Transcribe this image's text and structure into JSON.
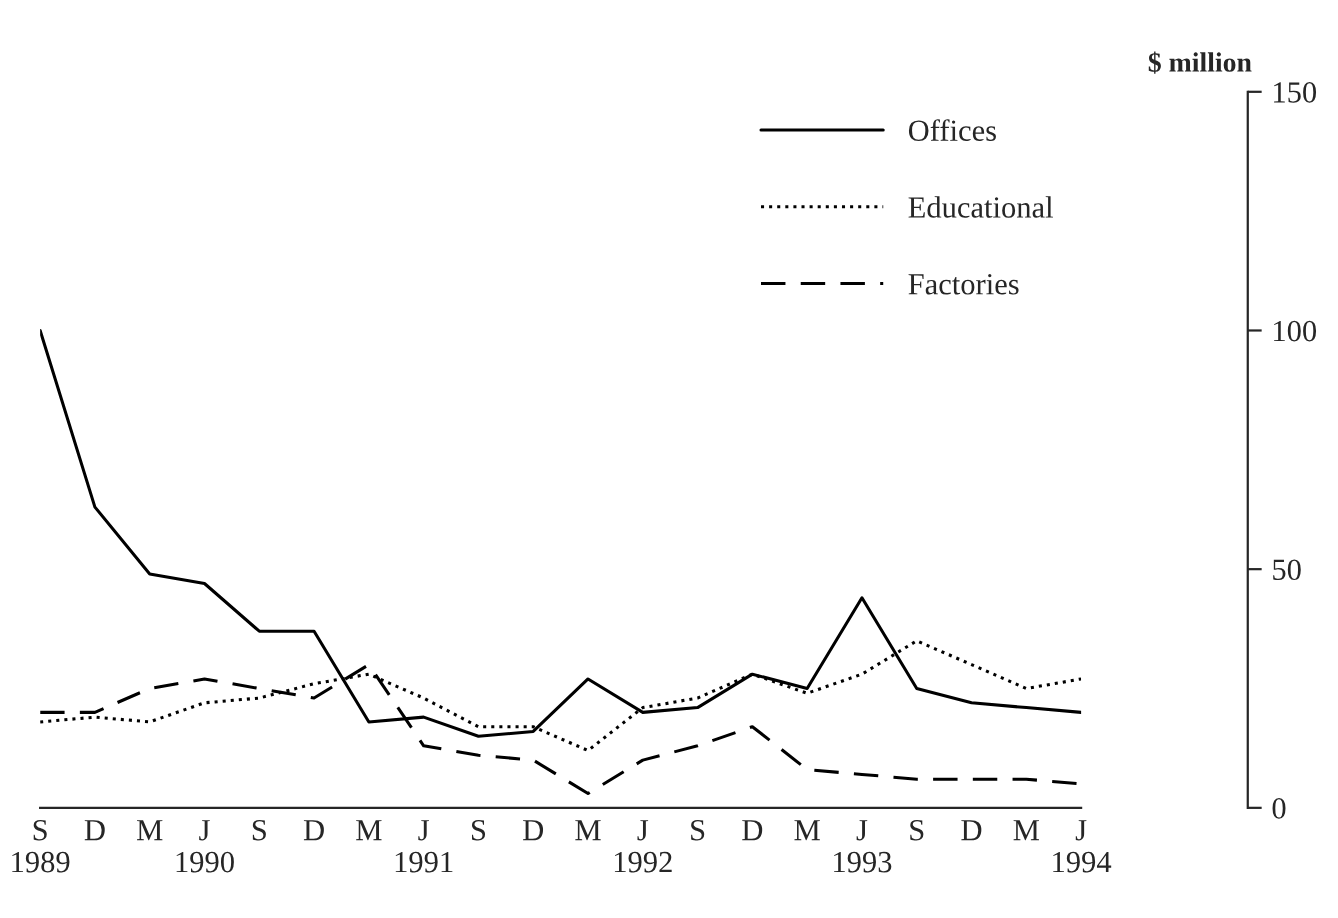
{
  "chart_data": {
    "type": "line",
    "ylabel": "$ million",
    "categories": [
      "S\n1989",
      "D",
      "M",
      "J\n1990",
      "S",
      "D",
      "M",
      "J\n1991",
      "S",
      "D",
      "M",
      "J\n1992",
      "S",
      "D",
      "M",
      "J\n1993",
      "S",
      "D",
      "M",
      "J\n1994"
    ],
    "series": [
      {
        "name": "Offices",
        "color": "#000000",
        "line_style": "solid",
        "values": [
          100,
          63,
          49,
          47,
          37,
          37,
          18,
          19,
          15,
          16,
          27,
          20,
          21,
          28,
          25,
          44,
          25,
          22,
          21,
          20
        ]
      },
      {
        "name": "Educational",
        "color": "#000000",
        "line_style": "dotted",
        "values": [
          18,
          19,
          18,
          22,
          23,
          26,
          28,
          23,
          17,
          17,
          12,
          21,
          23,
          28,
          24,
          28,
          35,
          30,
          25,
          27
        ]
      },
      {
        "name": "Factories",
        "color": "#000000",
        "line_style": "dashed",
        "values": [
          20,
          20,
          25,
          27,
          25,
          23,
          30,
          13,
          11,
          10,
          3,
          10,
          13,
          17,
          8,
          7,
          6,
          6,
          6,
          5
        ]
      }
    ],
    "ylim": [
      0,
      150
    ],
    "yticks": [
      0,
      50,
      100,
      150
    ],
    "grid": false,
    "legend": "top right",
    "marker": "none"
  }
}
